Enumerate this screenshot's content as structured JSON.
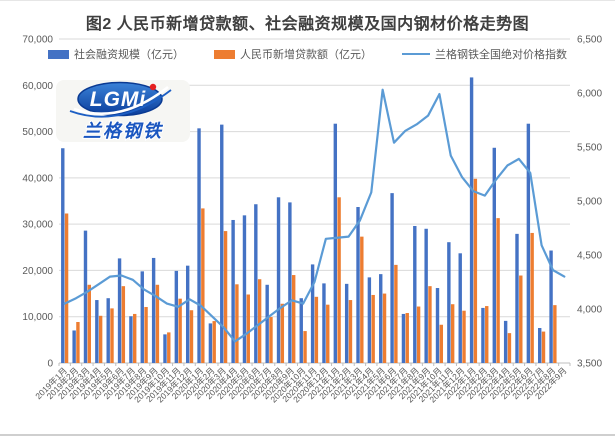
{
  "logo": {
    "main": "LGMi",
    "sub": "兰格钢铁",
    "oval_color": "#1b5ec8",
    "dot_color": "#e51f1f"
  },
  "axes_colors": {
    "grid": "#D9D9D9",
    "axis": "#BFBFBF",
    "tick_label": "#595959"
  },
  "chart_data": {
    "type": "bar",
    "title": "图2 人民币新增贷款额、社会融资规模及国内钢材价格走势图",
    "xlabel": "",
    "legend_position": "top",
    "grid": true,
    "ylim_left": [
      0,
      70000
    ],
    "ylim_right": [
      3500,
      6500
    ],
    "y_left_ticks": [
      "0",
      "10,000",
      "20,000",
      "30,000",
      "40,000",
      "50,000",
      "60,000",
      "70,000"
    ],
    "y_right_ticks": [
      "3,500",
      "4,000",
      "4,500",
      "5,000",
      "5,500",
      "6,000",
      "6,500"
    ],
    "categories": [
      "2019年1月",
      "2019年2月",
      "2019年3月",
      "2019年4月",
      "2019年5月",
      "2019年6月",
      "2019年7月",
      "2019年8月",
      "2019年9月",
      "2019年10月",
      "2019年11月",
      "2019年12月",
      "2020年1月",
      "2020年2月",
      "2020年3月",
      "2020年4月",
      "2020年5月",
      "2020年6月",
      "2020年7月",
      "2020年8月",
      "2020年9月",
      "2020年10月",
      "2020年11月",
      "2020年12月",
      "2021年1月",
      "2021年2月",
      "2021年3月",
      "2021年4月",
      "2021年5月",
      "2021年6月",
      "2021年7月",
      "2021年8月",
      "2021年9月",
      "2021年10月",
      "2021年11月",
      "2021年12月",
      "2022年1月",
      "2022年2月",
      "2022年3月",
      "2022年4月",
      "2022年5月",
      "2022年6月",
      "2022年7月",
      "2022年8月",
      "2022年9月"
    ],
    "series": [
      {
        "name": "社会融资规模（亿元）",
        "type": "bar",
        "axis": "left",
        "color": "#4472C4",
        "values": [
          46400,
          7030,
          28600,
          13600,
          14000,
          22600,
          10100,
          19800,
          22700,
          6189,
          19900,
          21030,
          50700,
          8554,
          51500,
          30900,
          31900,
          34300,
          16900,
          35800,
          34700,
          14000,
          21300,
          17200,
          51700,
          17100,
          33700,
          18500,
          19200,
          36700,
          10600,
          29600,
          29000,
          16200,
          26100,
          23700,
          61700,
          11900,
          46500,
          9102,
          27900,
          51700,
          7561,
          24300,
          null
        ]
      },
      {
        "name": "人民币新增贷款额（亿元）",
        "type": "bar",
        "axis": "left",
        "color": "#ED7D31",
        "values": [
          32300,
          8858,
          16900,
          10200,
          11800,
          16600,
          10600,
          12100,
          16900,
          6613,
          13900,
          11400,
          33400,
          9057,
          28500,
          17000,
          14800,
          18100,
          9927,
          12800,
          19000,
          6898,
          14300,
          12600,
          35800,
          13600,
          27300,
          14700,
          15000,
          21200,
          10800,
          12200,
          16600,
          8262,
          12700,
          11300,
          39800,
          12300,
          31300,
          6454,
          18900,
          28100,
          6790,
          12500,
          null
        ]
      },
      {
        "name": "兰格钢铁全国绝对价格指数",
        "type": "line",
        "axis": "right",
        "color": "#5B9BD5",
        "values": [
          4050,
          4100,
          4160,
          4230,
          4300,
          4310,
          4270,
          4180,
          4120,
          4050,
          4020,
          4090,
          4030,
          3930,
          3830,
          3700,
          3770,
          3850,
          3930,
          4010,
          4080,
          4050,
          4250,
          4650,
          4660,
          4670,
          4820,
          5080,
          6030,
          5540,
          5650,
          5710,
          5790,
          5990,
          5420,
          5220,
          5090,
          5050,
          5200,
          5330,
          5390,
          5260,
          4590,
          4360,
          4300
        ]
      }
    ]
  }
}
